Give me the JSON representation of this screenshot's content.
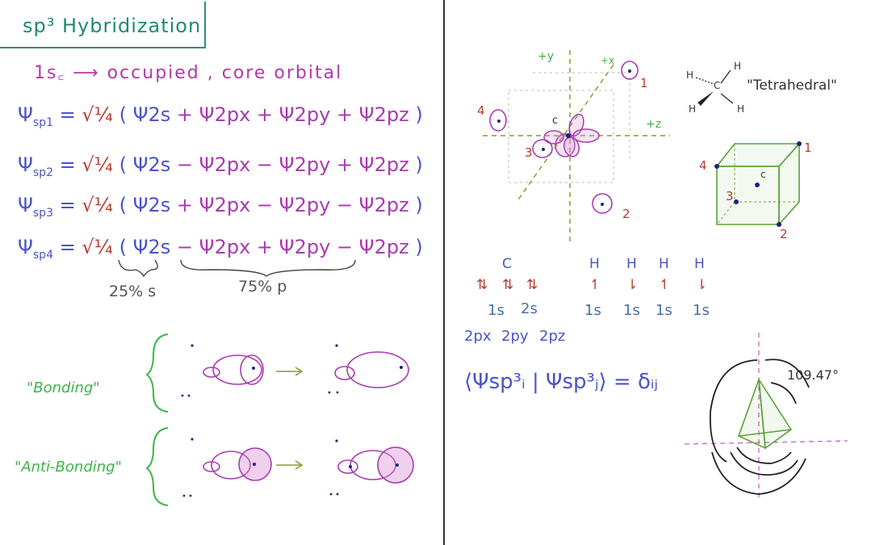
{
  "title": "sp³ Hybridization",
  "core_line": "1s꜀ ⟶ occupied , core orbital",
  "equations": [
    {
      "lhs_sym": "Ψ",
      "lhs_sub": "sp",
      "lhs_idx": "1",
      "eq": "=",
      "coef": "√¼",
      "t1": "Ψ2s",
      "op1": "+",
      "t2": "Ψ2px",
      "op2": "+",
      "t3": "Ψ2py",
      "op3": "+",
      "t4": "Ψ2pz"
    },
    {
      "lhs_sym": "Ψ",
      "lhs_sub": "sp",
      "lhs_idx": "2",
      "eq": "=",
      "coef": "√¼",
      "t1": "Ψ2s",
      "op1": "−",
      "t2": "Ψ2px",
      "op2": "−",
      "t3": "Ψ2py",
      "op3": "+",
      "t4": "Ψ2pz"
    },
    {
      "lhs_sym": "Ψ",
      "lhs_sub": "sp",
      "lhs_idx": "3",
      "eq": "=",
      "coef": "√¼",
      "t1": "Ψ2s",
      "op1": "+",
      "t2": "Ψ2px",
      "op2": "−",
      "t3": "Ψ2py",
      "op3": "−",
      "t4": "Ψ2pz"
    },
    {
      "lhs_sym": "Ψ",
      "lhs_sub": "sp",
      "lhs_idx": "4",
      "eq": "=",
      "coef": "√¼",
      "t1": "Ψ2s",
      "op1": "−",
      "t2": "Ψ2px",
      "op2": "+",
      "t3": "Ψ2py",
      "op3": "−",
      "t4": "Ψ2pz"
    }
  ],
  "brace_labels": {
    "s": "25% s",
    "p": "75% p"
  },
  "bonding_label": "\"Bonding\"",
  "antibonding_label": "\"Anti-Bonding\"",
  "axes": {
    "y": "+y",
    "x": "+x",
    "z": "+z",
    "c": "c"
  },
  "orbital_numbers": [
    "1",
    "2",
    "3",
    "4"
  ],
  "methane": {
    "h": "H",
    "c": "C",
    "label": "\"Tetrahedral\""
  },
  "cube_labels": {
    "n1": "1",
    "n2": "2",
    "n3": "3",
    "n4": "4",
    "c": "c"
  },
  "mo_diagram": {
    "c_label": "C",
    "h_labels": [
      "H",
      "H",
      "H",
      "H"
    ],
    "c_spins": [
      "⇅",
      "⇅",
      "⇅"
    ],
    "h_spins": [
      "↿",
      "⇂",
      "↿",
      "⇂"
    ],
    "c_levels": [
      "1s",
      "2s"
    ],
    "h_levels": [
      "1s",
      "1s",
      "1s",
      "1s"
    ],
    "p_levels": [
      "2px",
      "2py",
      "2pz"
    ]
  },
  "orthonormality": "⟨Ψsp³ᵢ | Ψsp³ⱼ⟩ = δᵢⱼ",
  "angle_label": "109.47°",
  "colors": {
    "teal": "#1f8a73",
    "purple": "#b03aa8",
    "blue": "#4a54c8",
    "red": "#b83a30",
    "green": "#3bb548",
    "olive": "#8a9a2a"
  }
}
